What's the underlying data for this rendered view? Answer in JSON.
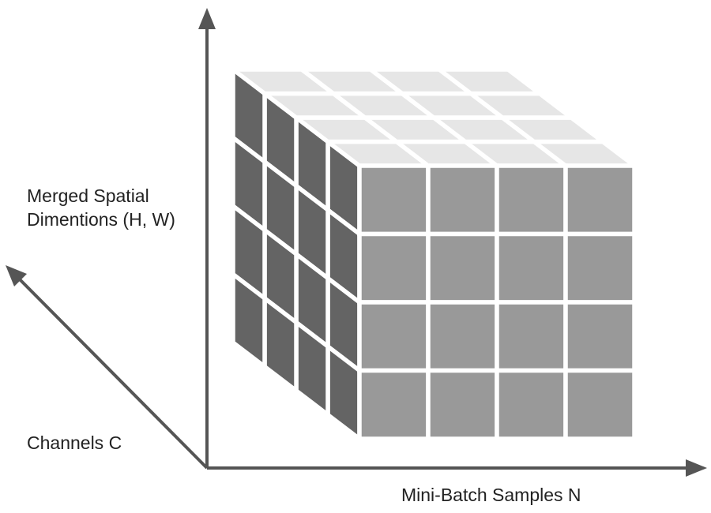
{
  "axes": {
    "vertical_label_line1": "Merged Spatial",
    "vertical_label_line2": "Dimentions (H, W)",
    "diagonal_label": "Channels C",
    "horizontal_label": "Mini-Batch Samples N"
  },
  "tensor": {
    "grid_size": 4,
    "colors": {
      "front_face": "#999999",
      "side_face": "#646464",
      "top_face": "#e6e6e6",
      "axis": "#555555",
      "gap": "#ffffff"
    }
  }
}
